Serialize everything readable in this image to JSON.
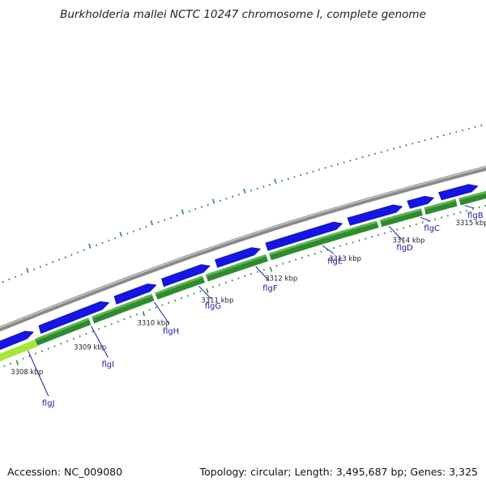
{
  "title": "Burkholderia mallei NCTC 10247 chromosome I, complete genome",
  "footer": {
    "accession": "Accession: NC_009080",
    "topology": "Topology: circular; Length: 3,495,687 bp; Genes: 3,325"
  },
  "colors": {
    "backbone": "#8a8a8a",
    "forward_strand": "#1515e6",
    "reverse_strand": "#2e8b2e",
    "highlight": "#a6e639",
    "ticks": "#2e8b2e",
    "labels": "#1a1aa6"
  },
  "scale_ticks": [
    {
      "label": "3308 kbp",
      "pos": 0.0
    },
    {
      "label": "3309 kbp",
      "pos": 1.0
    },
    {
      "label": "3310 kbp",
      "pos": 2.0
    },
    {
      "label": "3311 kbp",
      "pos": 3.0
    },
    {
      "label": "3312 kbp",
      "pos": 4.0
    },
    {
      "label": "3313 kbp",
      "pos": 5.0
    },
    {
      "label": "3314 kbp",
      "pos": 6.0
    },
    {
      "label": "3315 kbp",
      "pos": 7.0
    }
  ],
  "genes": [
    {
      "name": "flgJ",
      "pos": 0.2
    },
    {
      "name": "flgI",
      "pos": 1.2
    },
    {
      "name": "flgH",
      "pos": 2.2
    },
    {
      "name": "flgG",
      "pos": 2.9
    },
    {
      "name": "flgF",
      "pos": 3.8
    },
    {
      "name": "flgE",
      "pos": 4.85
    },
    {
      "name": "flgD",
      "pos": 5.9
    },
    {
      "name": "flgC",
      "pos": 6.4
    },
    {
      "name": "flgB",
      "pos": 7.1
    }
  ]
}
